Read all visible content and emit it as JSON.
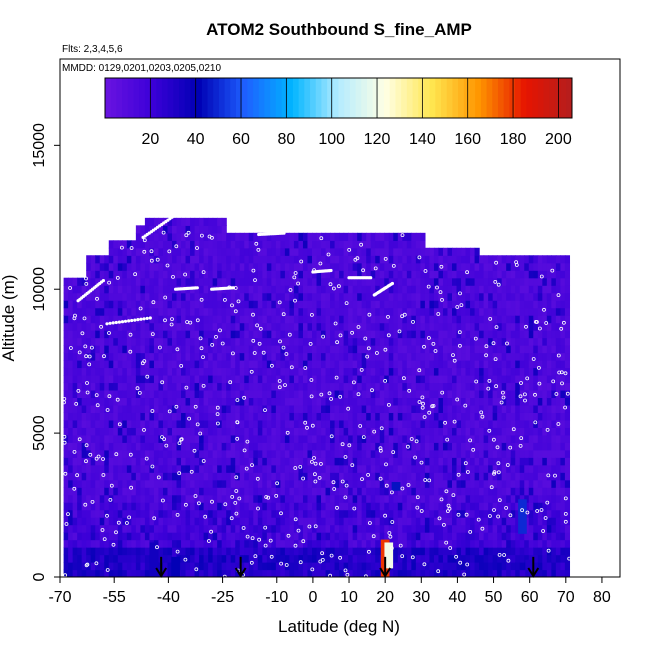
{
  "chart_data": {
    "type": "heatmap",
    "title": "ATOM2 Southbound S_fine_AMP",
    "flights_label": "Flts: 2,3,4,5,6",
    "dates_label": "MMDD: 0129,0201,0203,0205,0210",
    "xlabel": "Latitude (deg N)",
    "ylabel": "Altitude (m)",
    "xlim": [
      -70,
      85
    ],
    "ylim": [
      0,
      18000
    ],
    "x_ticks": [
      -70,
      -55,
      -40,
      -25,
      -10,
      0,
      10,
      20,
      30,
      40,
      50,
      60,
      70,
      80
    ],
    "y_ticks": [
      0,
      5000,
      10000,
      15000
    ],
    "colorbar": {
      "range": [
        0,
        206
      ],
      "ticks": [
        20,
        40,
        60,
        80,
        100,
        120,
        140,
        160,
        180,
        200
      ],
      "colors": [
        "#6a14e0",
        "#3c00d8",
        "#0000b4",
        "#1e60ff",
        "#00b4ff",
        "#b4ecff",
        "#ffffe4",
        "#ffe650",
        "#ff9600",
        "#e61400",
        "#b41e1e"
      ]
    },
    "background_color": "#6e28e8",
    "grid": false,
    "data_extent": {
      "lat_min": -69,
      "lat_max": 71
    },
    "highlights": [
      {
        "lat": -44,
        "alt_min": 0,
        "alt_max": 1200,
        "value": 35
      },
      {
        "lat": -38,
        "alt_min": 0,
        "alt_max": 700,
        "value": 40
      },
      {
        "lat": 20,
        "alt_min": 0,
        "alt_max": 1300,
        "value": 180
      },
      {
        "lat": 21,
        "alt_min": 300,
        "alt_max": 1200,
        "value": 120
      },
      {
        "lat": 23,
        "alt_min": 3000,
        "alt_max": 3300,
        "value": 45
      },
      {
        "lat": 58,
        "alt_min": 1500,
        "alt_max": 2700,
        "value": 50
      },
      {
        "lat": 60,
        "alt_min": 0,
        "alt_max": 600,
        "value": 30
      }
    ],
    "arrows": [
      -42,
      -20,
      20,
      61
    ]
  }
}
